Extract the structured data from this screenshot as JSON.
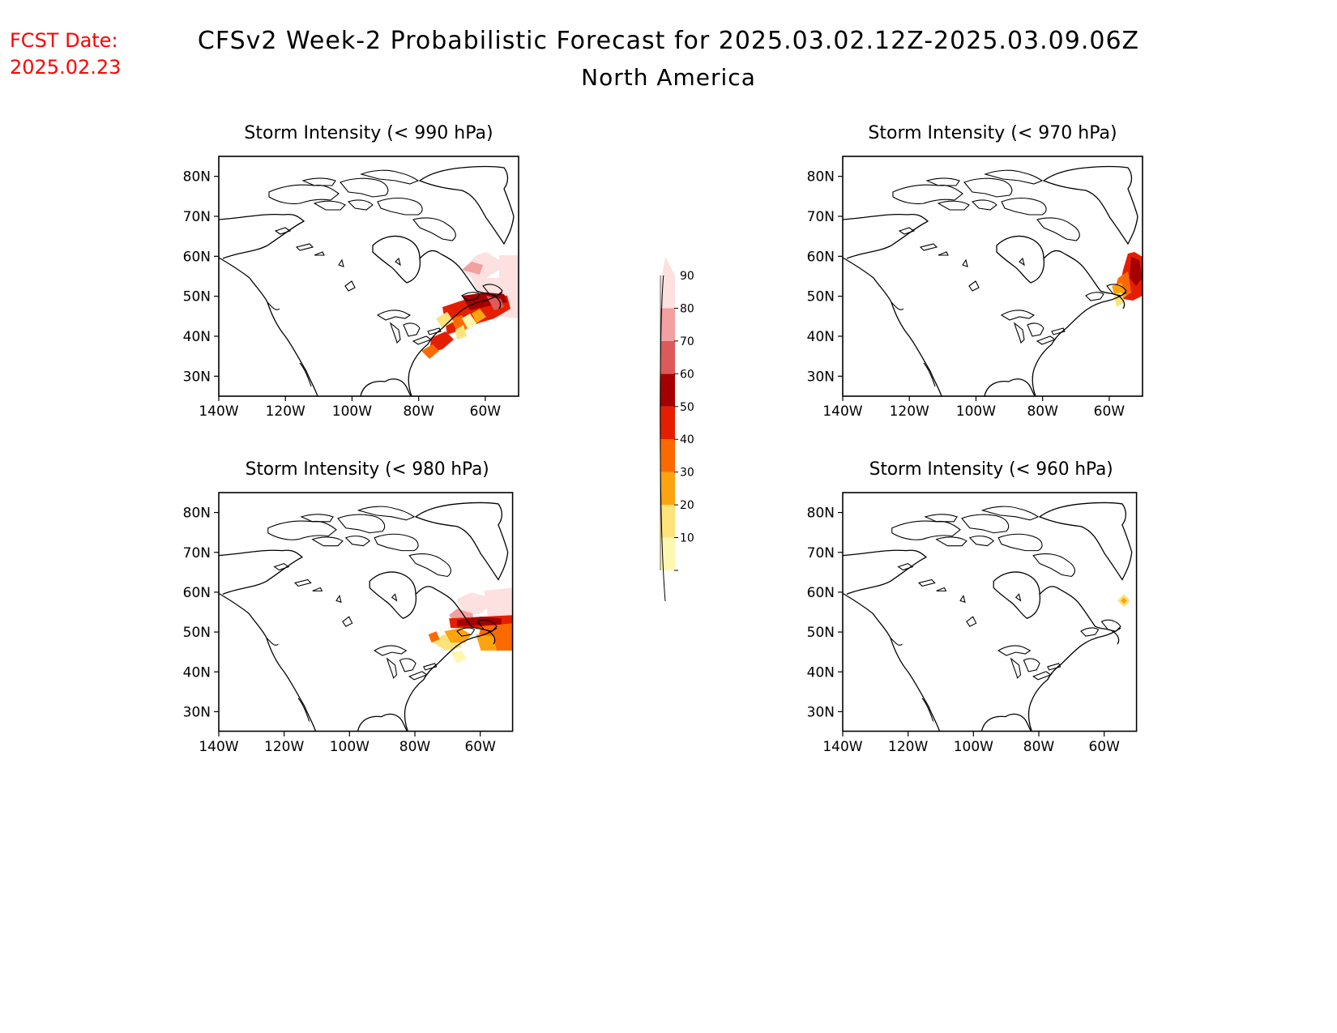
{
  "header": {
    "fcst_label": "FCST Date:",
    "fcst_date": "2025.02.23",
    "title": "CFSv2 Week-2 Probabilistic Forecast for 2025.03.02.12Z-2025.03.09.06Z",
    "subtitle": "North America"
  },
  "axes": {
    "lat_ticks": [
      "80N",
      "70N",
      "60N",
      "50N",
      "40N",
      "30N"
    ],
    "lon_ticks": [
      "140W",
      "120W",
      "100W",
      "80W",
      "60W"
    ]
  },
  "panels": [
    {
      "id": "p990",
      "title": "Storm Intensity (< 990 hPa)"
    },
    {
      "id": "p970",
      "title": "Storm Intensity (< 970 hPa)"
    },
    {
      "id": "p980",
      "title": "Storm Intensity (< 980 hPa)"
    },
    {
      "id": "p960",
      "title": "Storm Intensity (< 960 hPa)"
    }
  ],
  "colorbar": {
    "labels": [
      "10",
      "20",
      "30",
      "40",
      "50",
      "60",
      "70",
      "80",
      "90"
    ],
    "colors": [
      "#fff7b0",
      "#fde37a",
      "#fca40f",
      "#fb6a00",
      "#e61e00",
      "#a50000",
      "#dc5a5a",
      "#f2a0a0",
      "#fde0e0"
    ]
  }
}
